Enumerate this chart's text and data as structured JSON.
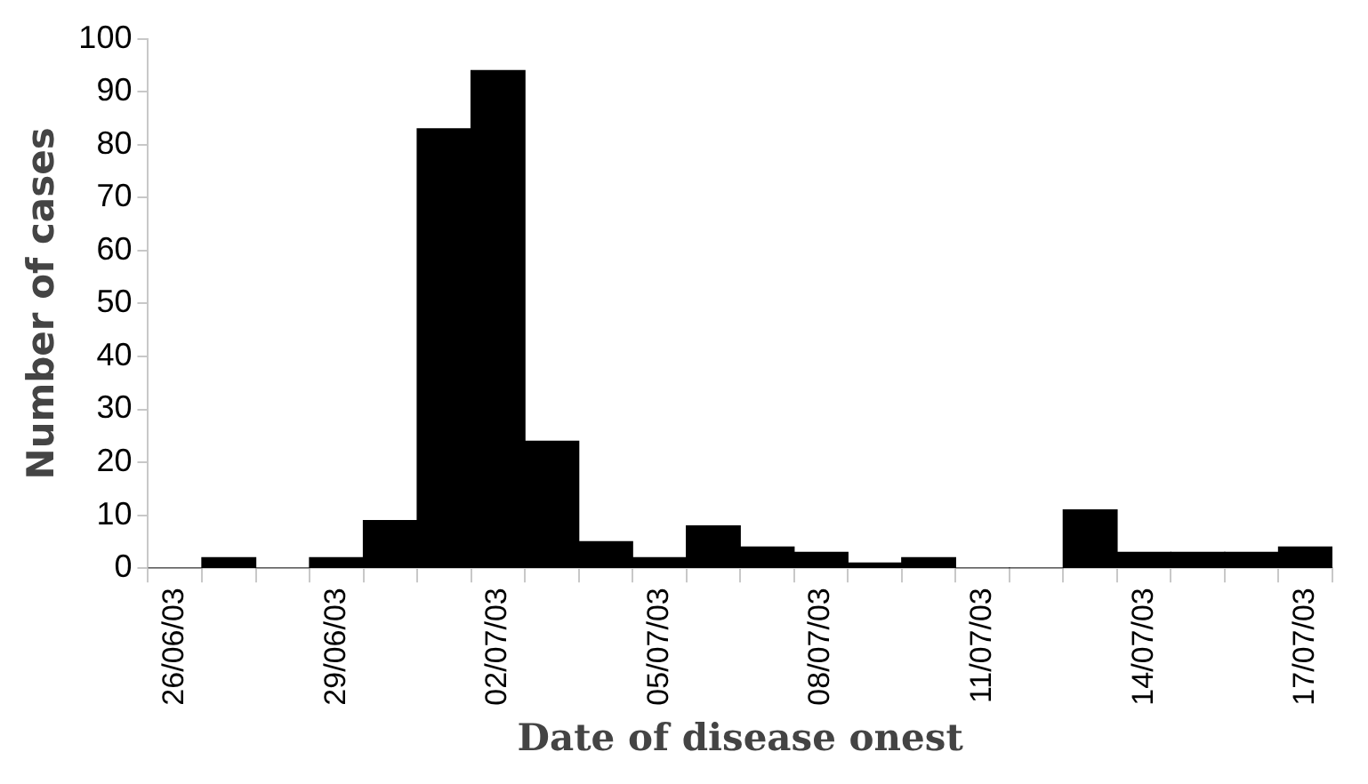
{
  "chart_data": {
    "type": "bar",
    "xlabel": "Date of disease onest",
    "ylabel": "Number of cases",
    "categories": [
      "26/06/03",
      null,
      null,
      "29/06/03",
      null,
      null,
      "02/07/03",
      null,
      null,
      "05/07/03",
      null,
      null,
      "08/07/03",
      null,
      null,
      "11/07/03",
      null,
      null,
      "14/07/03",
      null,
      null,
      "17/07/03"
    ],
    "values": [
      0,
      2,
      0,
      2,
      9,
      83,
      94,
      24,
      5,
      2,
      8,
      4,
      3,
      1,
      2,
      0,
      0,
      11,
      3,
      3,
      3,
      4
    ],
    "color": "#000000",
    "ylim": [
      0,
      100
    ],
    "yticks": [
      0,
      10,
      20,
      30,
      40,
      50,
      60,
      70,
      80,
      90,
      100
    ],
    "grid": false,
    "legend": false
  }
}
